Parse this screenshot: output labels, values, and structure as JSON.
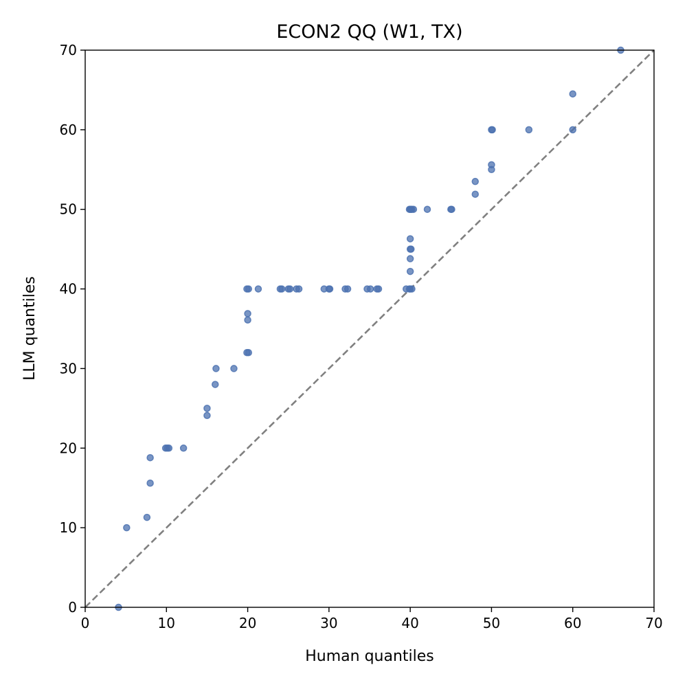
{
  "chart_data": {
    "type": "scatter",
    "title": "ECON2 QQ (W1, TX)",
    "xlabel": "Human quantiles",
    "ylabel": "LLM quantiles",
    "xlim": [
      0,
      70
    ],
    "ylim": [
      0,
      70
    ],
    "xticks": [
      0,
      10,
      20,
      30,
      40,
      50,
      60,
      70
    ],
    "yticks": [
      0,
      10,
      20,
      30,
      40,
      50,
      60,
      70
    ],
    "grid": false,
    "reference_line": {
      "from": [
        0,
        0
      ],
      "to": [
        70,
        70
      ],
      "style": "dashed",
      "color": "#808080"
    },
    "point_color": "#4c72b0",
    "points": [
      [
        4.1,
        0
      ],
      [
        5.1,
        10
      ],
      [
        7.6,
        11.3
      ],
      [
        8.0,
        15.6
      ],
      [
        8.0,
        18.8
      ],
      [
        9.9,
        20
      ],
      [
        10.1,
        20
      ],
      [
        10.3,
        20
      ],
      [
        12.1,
        20
      ],
      [
        15.0,
        24.1
      ],
      [
        15.0,
        25
      ],
      [
        16.0,
        28
      ],
      [
        16.1,
        30
      ],
      [
        18.3,
        30
      ],
      [
        19.9,
        32
      ],
      [
        20.1,
        32
      ],
      [
        20.0,
        36.1
      ],
      [
        20.0,
        36.9
      ],
      [
        19.9,
        40
      ],
      [
        20.1,
        40
      ],
      [
        21.3,
        40
      ],
      [
        24.0,
        40
      ],
      [
        24.2,
        40
      ],
      [
        25.0,
        40
      ],
      [
        25.2,
        40
      ],
      [
        26.0,
        40
      ],
      [
        26.3,
        40
      ],
      [
        29.4,
        40
      ],
      [
        30.0,
        40
      ],
      [
        30.1,
        40
      ],
      [
        32.0,
        40
      ],
      [
        32.3,
        40
      ],
      [
        34.7,
        40
      ],
      [
        35.1,
        40
      ],
      [
        35.9,
        40
      ],
      [
        36.1,
        40
      ],
      [
        39.5,
        40
      ],
      [
        39.9,
        40
      ],
      [
        40.0,
        40
      ],
      [
        40.2,
        40
      ],
      [
        40.0,
        42.2
      ],
      [
        40.0,
        43.8
      ],
      [
        40.0,
        45
      ],
      [
        40.1,
        45
      ],
      [
        40.0,
        46.3
      ],
      [
        39.9,
        50
      ],
      [
        40.0,
        50
      ],
      [
        40.1,
        50
      ],
      [
        40.2,
        50
      ],
      [
        40.4,
        50
      ],
      [
        42.1,
        50
      ],
      [
        45.0,
        50
      ],
      [
        45.1,
        50
      ],
      [
        48.0,
        51.9
      ],
      [
        48.0,
        53.5
      ],
      [
        50.0,
        55
      ],
      [
        50.0,
        55.6
      ],
      [
        50.0,
        60
      ],
      [
        50.1,
        60
      ],
      [
        54.6,
        60
      ],
      [
        60.0,
        60
      ],
      [
        60.0,
        64.5
      ],
      [
        65.9,
        70
      ]
    ]
  }
}
